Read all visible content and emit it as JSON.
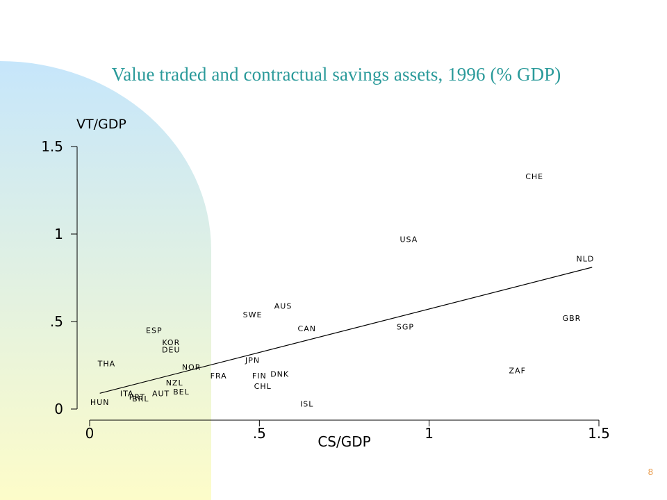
{
  "slide": {
    "title": "Value traded and contractual savings assets, 1996 (% GDP)",
    "page_number": "8"
  },
  "colors": {
    "title": "#2a9a9a",
    "page_number": "#e89a4a",
    "background_gradient_top": "#c6e6fb",
    "background_gradient_bottom": "#fdfcc9"
  },
  "chart_data": {
    "type": "scatter",
    "title": "",
    "xlabel": "CS/GDP",
    "ylabel": "VT/GDP",
    "xlim": [
      0,
      1.5
    ],
    "ylim": [
      0,
      1.5
    ],
    "x_ticks": [
      {
        "value": 0,
        "label": "0"
      },
      {
        "value": 0.5,
        "label": ".5"
      },
      {
        "value": 1,
        "label": "1"
      },
      {
        "value": 1.5,
        "label": "1.5"
      }
    ],
    "y_ticks": [
      {
        "value": 0,
        "label": "0"
      },
      {
        "value": 0.5,
        "label": ".5"
      },
      {
        "value": 1,
        "label": "1"
      },
      {
        "value": 1.5,
        "label": "1.5"
      }
    ],
    "grid": false,
    "marker": "country-code-label",
    "points": [
      {
        "label": "CHE",
        "x": 1.31,
        "y": 1.33
      },
      {
        "label": "USA",
        "x": 0.94,
        "y": 0.97
      },
      {
        "label": "NLD",
        "x": 1.46,
        "y": 0.86
      },
      {
        "label": "GBR",
        "x": 1.42,
        "y": 0.52
      },
      {
        "label": "ZAF",
        "x": 1.26,
        "y": 0.22
      },
      {
        "label": "SGP",
        "x": 0.93,
        "y": 0.47
      },
      {
        "label": "AUS",
        "x": 0.57,
        "y": 0.59
      },
      {
        "label": "SWE",
        "x": 0.48,
        "y": 0.54
      },
      {
        "label": "CAN",
        "x": 0.64,
        "y": 0.46
      },
      {
        "label": "JPN",
        "x": 0.48,
        "y": 0.28
      },
      {
        "label": "DNK",
        "x": 0.56,
        "y": 0.2
      },
      {
        "label": "FIN",
        "x": 0.5,
        "y": 0.19
      },
      {
        "label": "CHL",
        "x": 0.51,
        "y": 0.13
      },
      {
        "label": "ISL",
        "x": 0.64,
        "y": 0.03
      },
      {
        "label": "FRA",
        "x": 0.38,
        "y": 0.19
      },
      {
        "label": "NOR",
        "x": 0.3,
        "y": 0.24
      },
      {
        "label": "ESP",
        "x": 0.19,
        "y": 0.45
      },
      {
        "label": "KOR",
        "x": 0.24,
        "y": 0.38
      },
      {
        "label": "DEU",
        "x": 0.24,
        "y": 0.34
      },
      {
        "label": "THA",
        "x": 0.05,
        "y": 0.26
      },
      {
        "label": "NZL",
        "x": 0.25,
        "y": 0.15
      },
      {
        "label": "BEL",
        "x": 0.27,
        "y": 0.1
      },
      {
        "label": "AUT",
        "x": 0.21,
        "y": 0.09
      },
      {
        "label": "ITA",
        "x": 0.11,
        "y": 0.09
      },
      {
        "label": "PRT",
        "x": 0.14,
        "y": 0.07
      },
      {
        "label": "BRL",
        "x": 0.15,
        "y": 0.06
      },
      {
        "label": "HUN",
        "x": 0.03,
        "y": 0.04
      }
    ],
    "fit_line": {
      "x": [
        0.03,
        1.48
      ],
      "y": [
        0.09,
        0.81
      ]
    }
  }
}
